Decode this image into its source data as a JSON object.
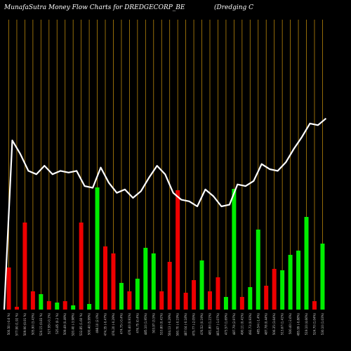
{
  "header": {
    "title": "MunafaSutra  Money Flow  Charts for DREDGECORP_BE",
    "company": "(Dredging C"
  },
  "colors": {
    "background": "#000000",
    "gridline": "#b8860b",
    "up": "#00ee00",
    "down": "#ee0000",
    "line": "#ffffff"
  },
  "chart_data": {
    "type": "bar",
    "title": "MunafaSutra  Money Flow  Charts for DREDGECORP_BE",
    "grid": true,
    "ylim": [
      0,
      100
    ],
    "categories": [
      "1",
      "2",
      "3",
      "4",
      "5",
      "6",
      "7",
      "8",
      "9",
      "10",
      "11",
      "12",
      "13",
      "14",
      "15",
      "16",
      "17",
      "18",
      "19",
      "20",
      "21",
      "22",
      "23",
      "24",
      "25",
      "26",
      "27",
      "28",
      "29",
      "30",
      "31",
      "32",
      "33",
      "34",
      "35",
      "36",
      "37",
      "38",
      "39",
      "40"
    ],
    "tick_labels": [
      "500.50 (-0.6 %)",
      "577.90 (1.92 %)",
      "509.90 (0.91 %)",
      "505.90 (3.43%)",
      "520.15 (0.83 %)",
      "527.95 (-0.1%)",
      "525.85 (0.2 %)",
      "509.49 (0.49%)",
      "520.40 (-3.98%)",
      "532.85 (1.60 %)",
      "500.40 (5.99%)",
      "498.10 (2.0%)",
      "474.35 (-0.47%)",
      "476.20 (-0.29%)",
      "474.75 (-0.4%)",
      "476.40 (0.91%)",
      "476.75 (0.4%)",
      "485.10 (1.95%)",
      "503.97 (3.5%)",
      "510.80 (0.41%)",
      "504.13 (-0.29%)",
      "500.70 (-0.19%)",
      "487.04 (-0.18%)",
      "475.77 (-2.05%)",
      "476.52 (0.19%)",
      "481.80 (1.21%)",
      "465.87 (-1.07%)",
      "473.57 (1.69%)",
      "487.79 (2.97%)",
      "490.11 (0.41%)",
      "492.73 (0.93%)",
      "485.54 (-1.4%)",
      "487.78 (0.44%)",
      "506.35 (3.64%)",
      "513.67 (1.41%)",
      "500.40 (-2.6%)",
      "495.99 (-0.88%)",
      "519.10 (4.66%)",
      "524.70 (1.04%)",
      "530.10 (1.03%)"
    ],
    "bar_values": [
      30,
      2,
      62,
      13,
      11,
      6,
      5,
      6,
      3,
      62,
      4,
      87,
      45,
      40,
      19,
      13,
      22,
      44,
      40,
      13,
      34,
      85,
      12,
      21,
      35,
      13,
      23,
      9,
      86,
      9,
      16,
      57,
      17,
      29,
      28,
      39,
      42,
      66,
      6,
      47
    ],
    "bar_directions": [
      "down",
      "down",
      "down",
      "down",
      "up",
      "down",
      "up",
      "down",
      "up",
      "down",
      "up",
      "up",
      "down",
      "down",
      "up",
      "down",
      "up",
      "up",
      "up",
      "down",
      "down",
      "down",
      "down",
      "down",
      "up",
      "down",
      "down",
      "up",
      "up",
      "down",
      "up",
      "up",
      "down",
      "down",
      "up",
      "up",
      "up",
      "up",
      "down",
      "up"
    ],
    "line_values": [
      {
        "x": 0,
        "y": 0
      },
      {
        "x": 1,
        "y": 100
      },
      {
        "x": 2,
        "y": 92
      },
      {
        "x": 3,
        "y": 82
      },
      {
        "x": 4,
        "y": 80
      },
      {
        "x": 5,
        "y": 85
      },
      {
        "x": 6,
        "y": 80
      },
      {
        "x": 7,
        "y": 82
      },
      {
        "x": 8,
        "y": 81
      },
      {
        "x": 9,
        "y": 82
      },
      {
        "x": 10,
        "y": 73
      },
      {
        "x": 11,
        "y": 72
      },
      {
        "x": 12,
        "y": 84
      },
      {
        "x": 13,
        "y": 75
      },
      {
        "x": 14,
        "y": 69
      },
      {
        "x": 15,
        "y": 71
      },
      {
        "x": 16,
        "y": 66
      },
      {
        "x": 17,
        "y": 70
      },
      {
        "x": 18,
        "y": 78
      },
      {
        "x": 19,
        "y": 85
      },
      {
        "x": 20,
        "y": 80
      },
      {
        "x": 21,
        "y": 69
      },
      {
        "x": 22,
        "y": 65
      },
      {
        "x": 23,
        "y": 64
      },
      {
        "x": 24,
        "y": 61
      },
      {
        "x": 25,
        "y": 71
      },
      {
        "x": 26,
        "y": 67
      },
      {
        "x": 27,
        "y": 61
      },
      {
        "x": 28,
        "y": 62
      },
      {
        "x": 29,
        "y": 74
      },
      {
        "x": 30,
        "y": 73
      },
      {
        "x": 31,
        "y": 76
      },
      {
        "x": 32,
        "y": 86
      },
      {
        "x": 33,
        "y": 83
      },
      {
        "x": 34,
        "y": 82
      },
      {
        "x": 35,
        "y": 87
      },
      {
        "x": 36,
        "y": 95
      },
      {
        "x": 37,
        "y": 102
      },
      {
        "x": 38,
        "y": 110
      },
      {
        "x": 39,
        "y": 109
      },
      {
        "x": 40,
        "y": 113
      }
    ],
    "line_ylim": [
      0,
      160
    ]
  }
}
